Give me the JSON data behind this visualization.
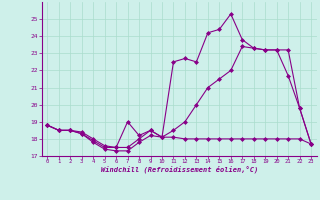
{
  "xlabel": "Windchill (Refroidissement éolien,°C)",
  "background_color": "#cef0ea",
  "grid_color": "#aaddcc",
  "line_color": "#880088",
  "x": [
    0,
    1,
    2,
    3,
    4,
    5,
    6,
    7,
    8,
    9,
    10,
    11,
    12,
    13,
    14,
    15,
    16,
    17,
    18,
    19,
    20,
    21,
    22,
    23
  ],
  "line1": [
    18.8,
    18.5,
    18.5,
    18.3,
    17.8,
    17.4,
    17.3,
    17.3,
    17.8,
    18.2,
    18.1,
    18.1,
    18.0,
    18.0,
    18.0,
    18.0,
    18.0,
    18.0,
    18.0,
    18.0,
    18.0,
    18.0,
    18.0,
    17.7
  ],
  "line2": [
    18.8,
    18.5,
    18.5,
    18.3,
    17.9,
    17.5,
    17.5,
    17.5,
    18.0,
    18.5,
    18.1,
    18.5,
    19.0,
    20.0,
    21.0,
    21.5,
    22.0,
    23.4,
    23.3,
    23.2,
    23.2,
    23.2,
    19.8,
    17.7
  ],
  "line3": [
    18.8,
    18.5,
    18.5,
    18.4,
    18.0,
    17.6,
    17.5,
    19.0,
    18.2,
    18.5,
    18.1,
    22.5,
    22.7,
    22.5,
    24.2,
    24.4,
    25.3,
    23.8,
    23.3,
    23.2,
    23.2,
    21.7,
    19.8,
    17.7
  ],
  "ylim": [
    17,
    26
  ],
  "xlim": [
    -0.5,
    23.5
  ],
  "yticks": [
    17,
    18,
    19,
    20,
    21,
    22,
    23,
    24,
    25
  ],
  "xticks": [
    0,
    1,
    2,
    3,
    4,
    5,
    6,
    7,
    8,
    9,
    10,
    11,
    12,
    13,
    14,
    15,
    16,
    17,
    18,
    19,
    20,
    21,
    22,
    23
  ],
  "marker": "D",
  "markersize": 2.0,
  "linewidth": 0.8
}
